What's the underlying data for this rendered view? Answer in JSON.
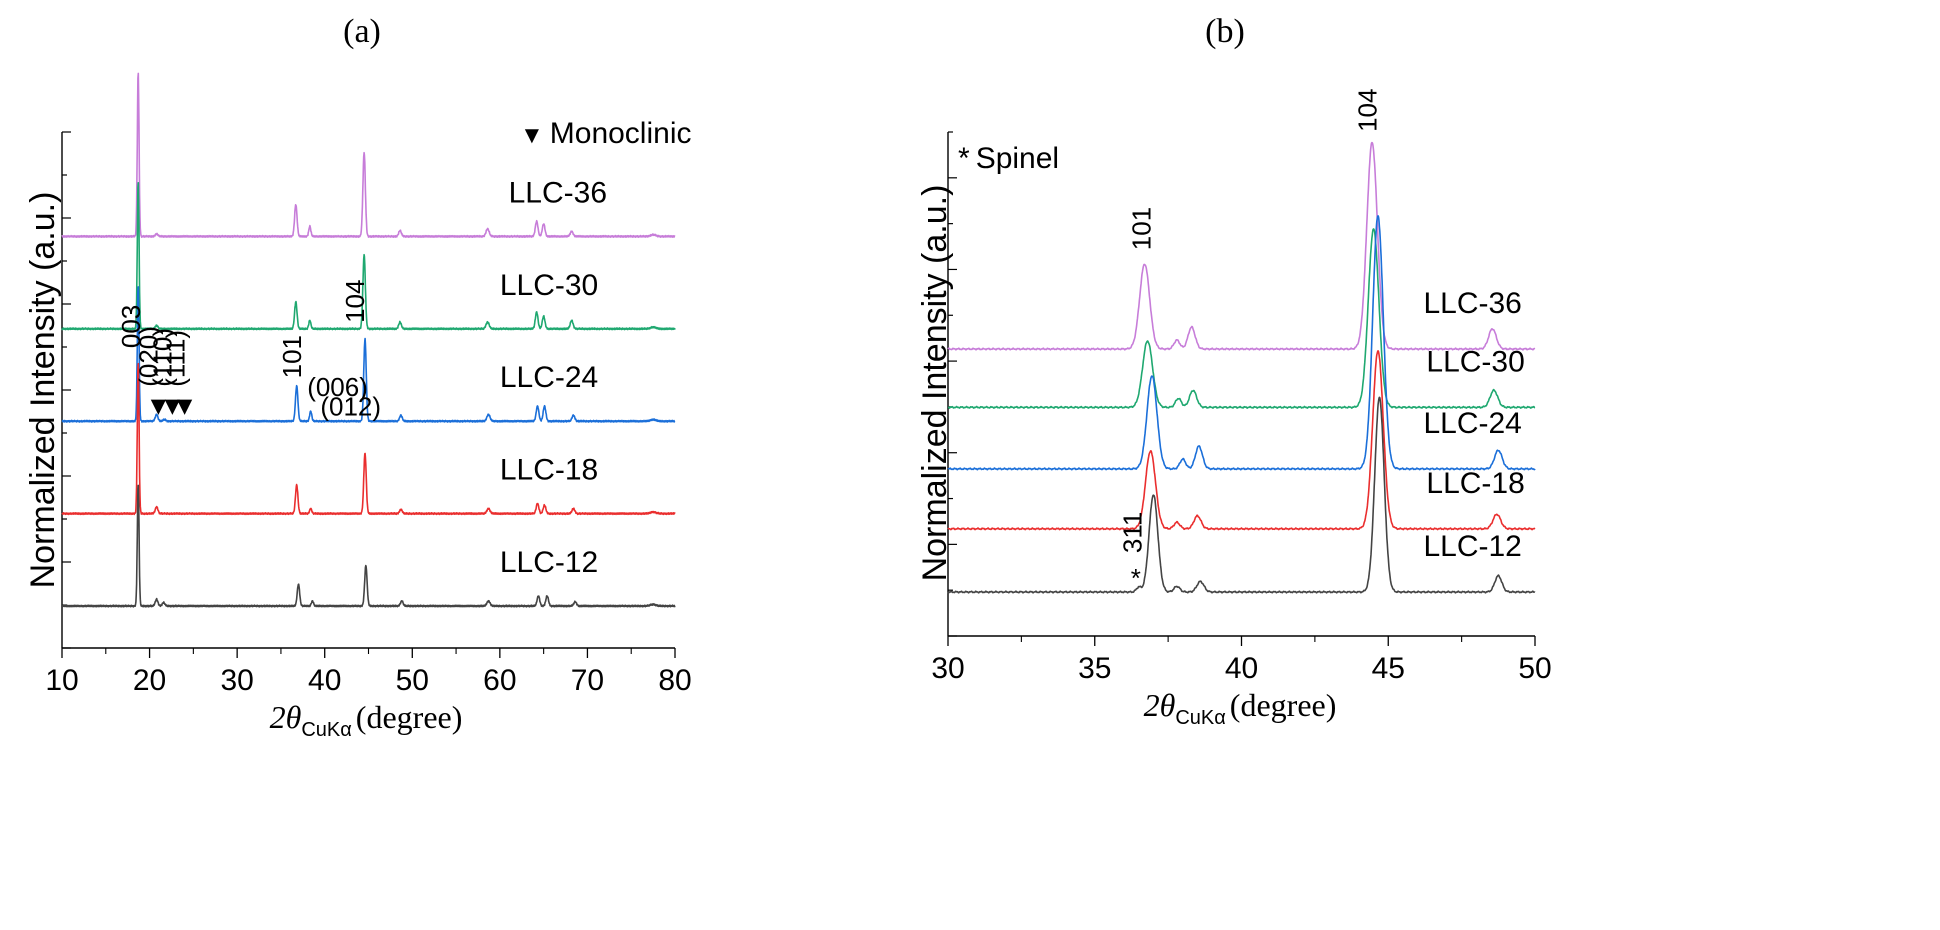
{
  "chart_data": [
    {
      "type": "line",
      "panel_label": "(a)",
      "xlabel": "2θCuKα (degree)",
      "xlabel_parts": {
        "theta": "2θ",
        "subscript": "CuKα",
        "unit": "(degree)"
      },
      "ylabel": "Normalized Intensity (a.u.)",
      "xlim": [
        10,
        80
      ],
      "xticks": [
        10,
        20,
        30,
        40,
        50,
        60,
        70,
        80
      ],
      "yticks_count": 12,
      "legend": {
        "symbol": "▼",
        "text": "Monoclinic"
      },
      "baseline_width": 0.08,
      "series": [
        {
          "name": "LLC-36",
          "color": "#c77dd9",
          "offset": 4.4,
          "label_x": 61,
          "peaks": [
            [
              18.7,
              1.95,
              0.1
            ],
            [
              20.8,
              0.03,
              0.15
            ],
            [
              36.7,
              0.38,
              0.14
            ],
            [
              38.3,
              0.12,
              0.12
            ],
            [
              44.5,
              1.0,
              0.14
            ],
            [
              48.6,
              0.07,
              0.15
            ],
            [
              58.6,
              0.09,
              0.18
            ],
            [
              64.2,
              0.18,
              0.15
            ],
            [
              65.0,
              0.15,
              0.15
            ],
            [
              68.2,
              0.06,
              0.16
            ],
            [
              77.5,
              0.02,
              0.3
            ]
          ]
        },
        {
          "name": "LLC-30",
          "color": "#1fa870",
          "offset": 3.3,
          "label_x": 60,
          "peaks": [
            [
              18.7,
              1.75,
              0.1
            ],
            [
              20.8,
              0.04,
              0.15
            ],
            [
              36.7,
              0.32,
              0.14
            ],
            [
              38.3,
              0.1,
              0.12
            ],
            [
              44.5,
              0.88,
              0.14
            ],
            [
              48.6,
              0.08,
              0.15
            ],
            [
              58.6,
              0.08,
              0.18
            ],
            [
              64.2,
              0.2,
              0.15
            ],
            [
              65.0,
              0.15,
              0.15
            ],
            [
              68.2,
              0.1,
              0.16
            ],
            [
              77.5,
              0.02,
              0.3
            ]
          ]
        },
        {
          "name": "LLC-24",
          "color": "#1b6fd9",
          "offset": 2.2,
          "label_x": 60,
          "peaks": [
            [
              18.7,
              1.6,
              0.1
            ],
            [
              20.8,
              0.08,
              0.15
            ],
            [
              21.7,
              0.02,
              0.15
            ],
            [
              36.8,
              0.42,
              0.14
            ],
            [
              38.4,
              0.12,
              0.12
            ],
            [
              44.6,
              0.98,
              0.14
            ],
            [
              48.7,
              0.07,
              0.15
            ],
            [
              58.7,
              0.08,
              0.18
            ],
            [
              64.3,
              0.18,
              0.15
            ],
            [
              65.1,
              0.18,
              0.15
            ],
            [
              68.4,
              0.07,
              0.16
            ],
            [
              77.5,
              0.02,
              0.3
            ]
          ]
        },
        {
          "name": "LLC-18",
          "color": "#ea2e2e",
          "offset": 1.1,
          "label_x": 60,
          "peaks": [
            [
              18.7,
              1.8,
              0.1
            ],
            [
              20.8,
              0.08,
              0.15
            ],
            [
              36.8,
              0.34,
              0.14
            ],
            [
              38.4,
              0.06,
              0.12
            ],
            [
              44.6,
              0.72,
              0.14
            ],
            [
              48.7,
              0.05,
              0.15
            ],
            [
              58.7,
              0.06,
              0.18
            ],
            [
              64.3,
              0.12,
              0.15
            ],
            [
              65.1,
              0.1,
              0.15
            ],
            [
              68.4,
              0.06,
              0.16
            ],
            [
              77.5,
              0.02,
              0.3
            ]
          ]
        },
        {
          "name": "LLC-12",
          "color": "#444444",
          "offset": 0.0,
          "label_x": 60,
          "peaks": [
            [
              18.7,
              1.45,
              0.1
            ],
            [
              20.8,
              0.08,
              0.15
            ],
            [
              21.6,
              0.04,
              0.15
            ],
            [
              37.0,
              0.26,
              0.14
            ],
            [
              38.6,
              0.06,
              0.12
            ],
            [
              44.7,
              0.48,
              0.14
            ],
            [
              48.8,
              0.06,
              0.15
            ],
            [
              58.7,
              0.06,
              0.18
            ],
            [
              64.4,
              0.12,
              0.15
            ],
            [
              65.4,
              0.12,
              0.15
            ],
            [
              68.6,
              0.05,
              0.16
            ],
            [
              77.5,
              0.02,
              0.3
            ]
          ]
        }
      ],
      "annotations": [
        {
          "text": "003",
          "x": 18.9,
          "y": 3.07,
          "rotate": 90
        },
        {
          "text": "(020)",
          "x": 20.9,
          "y": 2.61,
          "rotate": 90
        },
        {
          "text": "(110)",
          "x": 22.5,
          "y": 2.61,
          "rotate": 90
        },
        {
          "text": "(111)",
          "x": 24.0,
          "y": 2.61,
          "rotate": 90
        },
        {
          "text": "101",
          "x": 37.3,
          "y": 2.71,
          "rotate": 90
        },
        {
          "text": "(006)",
          "x": 38.0,
          "y": 2.5,
          "rotate": 0
        },
        {
          "text": "(012)",
          "x": 39.5,
          "y": 2.27,
          "rotate": 0
        },
        {
          "text": "104",
          "x": 44.5,
          "y": 3.37,
          "rotate": 90
        }
      ],
      "markers": [
        {
          "symbol": "▼",
          "x": 21.0,
          "y": 2.28
        },
        {
          "symbol": "▼",
          "x": 22.6,
          "y": 2.28
        },
        {
          "symbol": "▼",
          "x": 24.0,
          "y": 2.28
        }
      ]
    },
    {
      "type": "line",
      "panel_label": "(b)",
      "xlabel": "2θCuKα (degree)",
      "xlabel_parts": {
        "theta": "2θ",
        "subscript": "CuKα",
        "unit": "(degree)"
      },
      "ylabel": "Normalized Intensity (a.u.)",
      "xlim": [
        30,
        50
      ],
      "xticks": [
        30,
        35,
        40,
        45,
        50
      ],
      "yticks_count": 11,
      "legend": {
        "symbol": "*",
        "text": "Spinel"
      },
      "baseline_width": 0.05,
      "series": [
        {
          "name": "LLC-36",
          "color": "#c77dd9",
          "offset": 3.0,
          "label_x": 46.2,
          "peaks": [
            [
              36.7,
              1.05,
              0.17
            ],
            [
              37.8,
              0.11,
              0.1
            ],
            [
              38.3,
              0.27,
              0.12
            ],
            [
              44.45,
              2.55,
              0.18
            ],
            [
              48.55,
              0.25,
              0.13
            ]
          ]
        },
        {
          "name": "LLC-30",
          "color": "#1fa870",
          "offset": 2.28,
          "label_x": 46.3,
          "peaks": [
            [
              36.8,
              0.82,
              0.17
            ],
            [
              37.85,
              0.11,
              0.1
            ],
            [
              38.35,
              0.21,
              0.12
            ],
            [
              44.5,
              2.2,
              0.18
            ],
            [
              48.6,
              0.21,
              0.13
            ]
          ]
        },
        {
          "name": "LLC-24",
          "color": "#1b6fd9",
          "offset": 1.52,
          "label_x": 46.2,
          "peaks": [
            [
              36.95,
              1.15,
              0.17
            ],
            [
              38.0,
              0.12,
              0.1
            ],
            [
              38.55,
              0.28,
              0.12
            ],
            [
              44.65,
              3.12,
              0.18
            ],
            [
              48.75,
              0.23,
              0.13
            ]
          ]
        },
        {
          "name": "LLC-18",
          "color": "#ea2e2e",
          "offset": 0.78,
          "label_x": 46.3,
          "peaks": [
            [
              36.9,
              0.96,
              0.17
            ],
            [
              37.8,
              0.08,
              0.1
            ],
            [
              38.5,
              0.16,
              0.12
            ],
            [
              44.65,
              2.2,
              0.18
            ],
            [
              48.7,
              0.18,
              0.13
            ]
          ]
        },
        {
          "name": "LLC-12",
          "color": "#444444",
          "offset": 0.0,
          "label_x": 46.2,
          "peaks": [
            [
              36.5,
              0.06,
              0.08
            ],
            [
              37.0,
              1.2,
              0.15
            ],
            [
              37.8,
              0.07,
              0.1
            ],
            [
              38.6,
              0.13,
              0.12
            ],
            [
              44.7,
              2.4,
              0.16
            ],
            [
              48.75,
              0.2,
              0.12
            ]
          ]
        }
      ],
      "annotations": [
        {
          "text": "101",
          "x": 36.9,
          "y": 4.22,
          "rotate": 90
        },
        {
          "text": "104",
          "x": 44.6,
          "y": 5.68,
          "rotate": 90
        },
        {
          "text": "311",
          "x": 36.6,
          "y": 0.48,
          "rotate": 90
        }
      ],
      "markers": [
        {
          "symbol": "*",
          "x": 36.4,
          "y": 0.06
        }
      ]
    }
  ]
}
